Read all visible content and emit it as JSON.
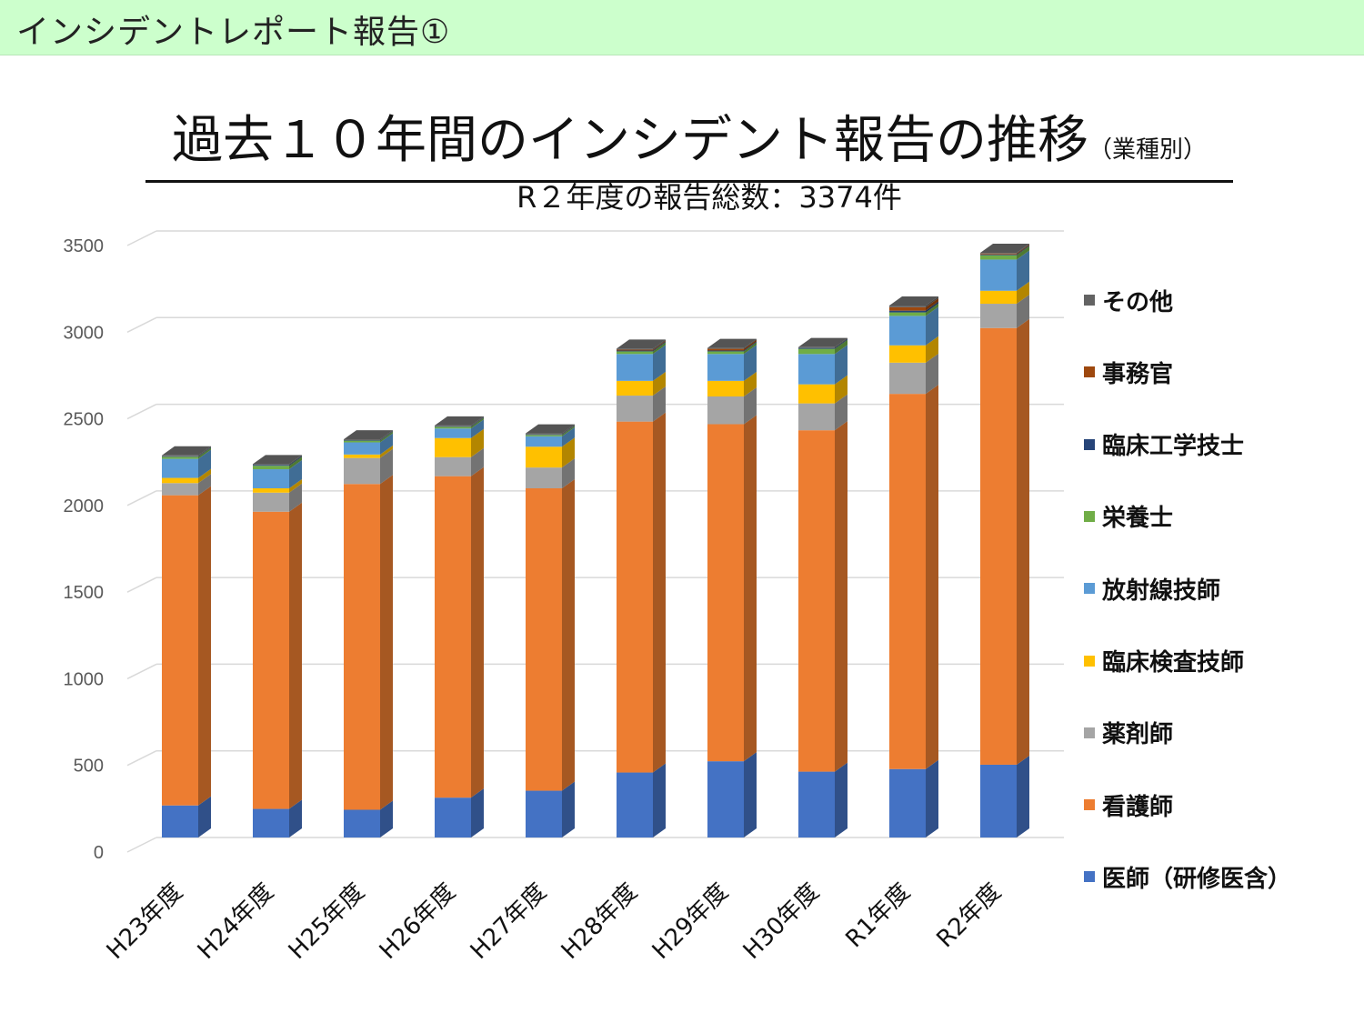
{
  "header": {
    "title": "インシデントレポート報告①"
  },
  "slide": {
    "title": "過去１０年間のインシデント報告の推移",
    "title_note": "（業種別）",
    "subtitle": "R２年度の報告総数：3374件"
  },
  "chart_data": {
    "type": "bar",
    "stacked": true,
    "style": "3d-column",
    "title": "過去１０年間のインシデント報告の推移（業種別）",
    "subtitle": "R２年度の報告総数：3374件",
    "xlabel": "",
    "ylabel": "",
    "ylim": [
      0,
      3500
    ],
    "yticks": [
      0,
      500,
      1000,
      1500,
      2000,
      2500,
      3000,
      3500
    ],
    "grid": true,
    "legend_position": "right",
    "categories": [
      "H23年度",
      "H24年度",
      "H25年度",
      "H26年度",
      "H27年度",
      "H28年度",
      "H29年度",
      "H30年度",
      "R1年度",
      "R2年度"
    ],
    "series": [
      {
        "name": "医師（研修医含）",
        "color": "#4472c4",
        "values": [
          185,
          165,
          160,
          230,
          270,
          375,
          440,
          380,
          395,
          420
        ]
      },
      {
        "name": "看護師",
        "color": "#ed7d31",
        "values": [
          1790,
          1715,
          1880,
          1855,
          1745,
          2025,
          1945,
          1970,
          2165,
          2520
        ]
      },
      {
        "name": "薬剤師",
        "color": "#a5a5a5",
        "values": [
          70,
          110,
          150,
          110,
          120,
          150,
          160,
          155,
          180,
          140
        ]
      },
      {
        "name": "臨床検査技師",
        "color": "#ffc000",
        "values": [
          30,
          25,
          20,
          110,
          120,
          85,
          90,
          110,
          100,
          75
        ]
      },
      {
        "name": "放射線技師",
        "color": "#5b9bd5",
        "values": [
          110,
          110,
          70,
          55,
          60,
          155,
          155,
          175,
          170,
          180
        ]
      },
      {
        "name": "栄養士",
        "color": "#70ad47",
        "values": [
          12,
          20,
          10,
          10,
          8,
          15,
          15,
          30,
          20,
          25
        ]
      },
      {
        "name": "臨床工学技士",
        "color": "#264478",
        "values": [
          3,
          5,
          3,
          3,
          3,
          5,
          5,
          5,
          10,
          5
        ]
      },
      {
        "name": "事務官",
        "color": "#9e480e",
        "values": [
          0,
          0,
          0,
          0,
          0,
          5,
          10,
          0,
          20,
          5
        ]
      },
      {
        "name": "その他",
        "color": "#636363",
        "values": [
          5,
          5,
          5,
          5,
          6,
          6,
          5,
          5,
          10,
          4
        ]
      }
    ]
  }
}
